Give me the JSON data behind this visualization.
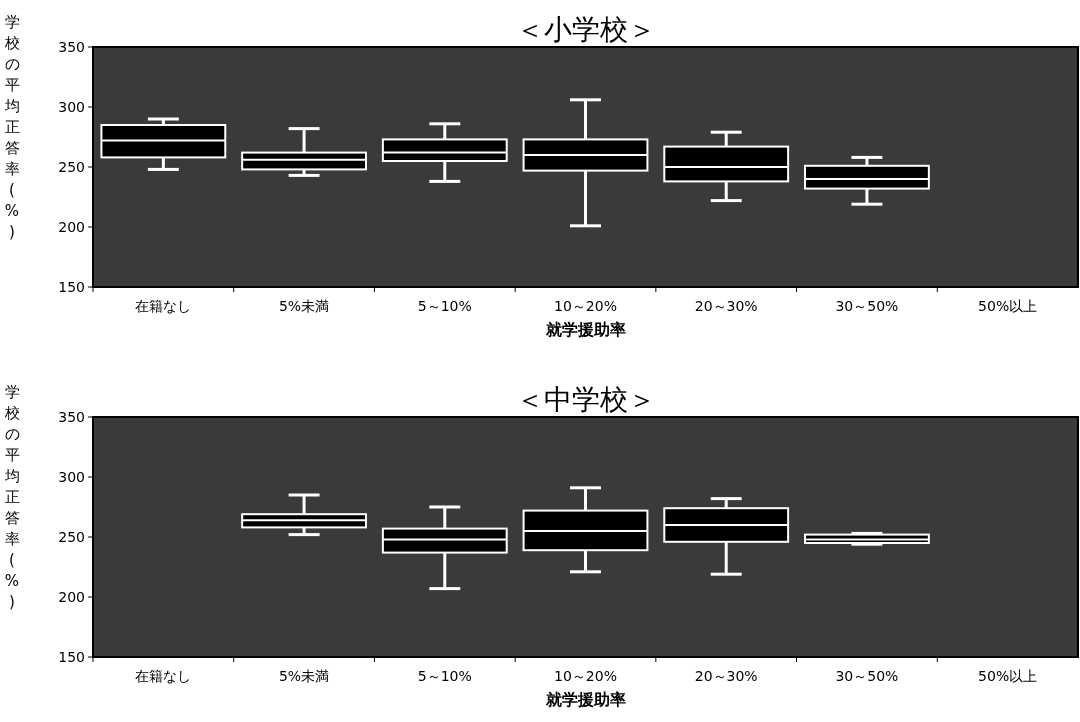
{
  "chart_data": [
    {
      "type": "box",
      "title": "＜小学校＞",
      "xlabel": "就学援助率",
      "ylabel": "学校の平均正答率(%)",
      "categories": [
        "在籍なし",
        "5%未満",
        "5～10%",
        "10～20%",
        "20～30%",
        "30～50%",
        "50%以上"
      ],
      "boxes": [
        {
          "low": 248,
          "q1": 258,
          "median": 272,
          "q3": 285,
          "high": 290
        },
        {
          "low": 243,
          "q1": 248,
          "median": 256,
          "q3": 262,
          "high": 282
        },
        {
          "low": 238,
          "q1": 255,
          "median": 262,
          "q3": 273,
          "high": 286
        },
        {
          "low": 201,
          "q1": 247,
          "median": 260,
          "q3": 273,
          "high": 306
        },
        {
          "low": 222,
          "q1": 238,
          "median": 250,
          "q3": 267,
          "high": 279
        },
        {
          "low": 219,
          "q1": 232,
          "median": 240,
          "q3": 251,
          "high": 258
        },
        null
      ],
      "ylim": [
        150,
        350
      ],
      "yticks": [
        150,
        200,
        250,
        300,
        350
      ]
    },
    {
      "type": "box",
      "title": "＜中学校＞",
      "xlabel": "就学援助率",
      "ylabel": "学校の平均正答率(%)",
      "categories": [
        "在籍なし",
        "5%未満",
        "5～10%",
        "10～20%",
        "20～30%",
        "30～50%",
        "50%以上"
      ],
      "boxes": [
        null,
        {
          "low": 252,
          "q1": 258,
          "median": 264,
          "q3": 269,
          "high": 285
        },
        {
          "low": 207,
          "q1": 237,
          "median": 248,
          "q3": 257,
          "high": 275
        },
        {
          "low": 221,
          "q1": 239,
          "median": 255,
          "q3": 272,
          "high": 291
        },
        {
          "low": 219,
          "q1": 246,
          "median": 260,
          "q3": 274,
          "high": 282
        },
        {
          "low": 244,
          "q1": 245,
          "median": 248,
          "q3": 252,
          "high": 253
        },
        null
      ],
      "ylim": [
        150,
        350
      ],
      "yticks": [
        150,
        200,
        250,
        300,
        350
      ]
    }
  ]
}
